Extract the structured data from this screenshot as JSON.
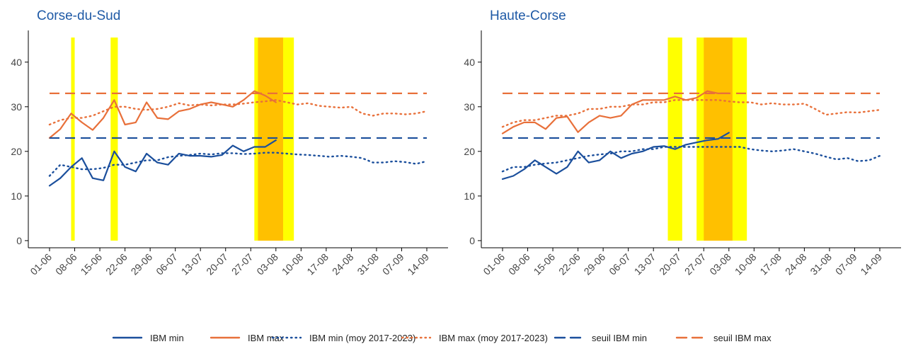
{
  "legend": [
    {
      "name": "IBM min",
      "color": "#1b4f9c",
      "dash": "solid"
    },
    {
      "name": "IBM max",
      "color": "#e8703a",
      "dash": "solid"
    },
    {
      "name": "IBM min (moy 2017-2023)",
      "color": "#1b4f9c",
      "dash": "dotted"
    },
    {
      "name": "IBM max (moy 2017-2023)",
      "color": "#e8703a",
      "dash": "dotted"
    },
    {
      "name": "seuil IBM min",
      "color": "#1b4f9c",
      "dash": "dashed"
    },
    {
      "name": "seuil IBM max",
      "color": "#e8703a",
      "dash": "dashed"
    }
  ],
  "chart_data": [
    {
      "type": "line",
      "title": "Corse-du-Sud",
      "x": [
        "01-06",
        "04-06",
        "07-06",
        "10-06",
        "13-06",
        "16-06",
        "19-06",
        "22-06",
        "25-06",
        "28-06",
        "01-07",
        "04-07",
        "07-07",
        "10-07",
        "13-07",
        "16-07",
        "19-07",
        "22-07",
        "25-07",
        "28-07",
        "31-07",
        "03-08",
        "06-08",
        "09-08",
        "12-08",
        "15-08",
        "18-08",
        "21-08",
        "24-08",
        "27-08",
        "30-08",
        "02-09",
        "05-09",
        "08-09",
        "11-09",
        "14-09"
      ],
      "xticks": [
        "01-06",
        "08-06",
        "15-06",
        "22-06",
        "29-06",
        "06-07",
        "13-07",
        "20-07",
        "27-07",
        "03-08",
        "10-08",
        "17-08",
        "24-08",
        "31-08",
        "07-09",
        "14-09"
      ],
      "ylim": [
        -1.6,
        47.1
      ],
      "yticks": [
        0,
        10,
        20,
        30,
        40
      ],
      "bands": [
        {
          "start": "07-06",
          "end": "08-06",
          "color": "#ffff00"
        },
        {
          "start": "18-06",
          "end": "20-06",
          "color": "#ffff00"
        },
        {
          "start": "28-07",
          "end": "08-08",
          "color": "#ffff00"
        },
        {
          "start": "29-07",
          "end": "05-08",
          "color": "#ffc000"
        }
      ],
      "series": [
        {
          "values": [
            12.3,
            14,
            16.5,
            18.5,
            14,
            13.5,
            20,
            16.5,
            15.5,
            19.5,
            17.5,
            17,
            19.5,
            19,
            19,
            18.8,
            19.2,
            21.3,
            20,
            21,
            21,
            22.5,
            null,
            null,
            null,
            null,
            null,
            null,
            null,
            null,
            null,
            null,
            null,
            null,
            null,
            null
          ]
        },
        {
          "values": [
            23,
            25,
            28.5,
            26.5,
            24.8,
            27.5,
            31.5,
            26,
            26.5,
            31,
            27.5,
            27.2,
            29,
            29.5,
            30.5,
            31,
            30.5,
            30,
            31.5,
            33.5,
            32.5,
            31,
            null,
            null,
            null,
            null,
            null,
            null,
            null,
            null,
            null,
            null,
            null,
            null,
            null,
            null
          ]
        },
        {
          "values": [
            14.5,
            17,
            16.5,
            16,
            16,
            16.3,
            17,
            17,
            17.5,
            18,
            18,
            18.7,
            19,
            19.2,
            19.5,
            19.3,
            19.6,
            19.6,
            19.4,
            19.5,
            19.7,
            19.7,
            19.5,
            19.3,
            19.2,
            19,
            18.8,
            19,
            18.8,
            18.5,
            17.5,
            17.5,
            17.8,
            17.6,
            17.2,
            17.8
          ]
        },
        {
          "values": [
            26,
            27,
            27.5,
            27.5,
            28,
            29,
            30,
            30,
            29.5,
            29.3,
            29.5,
            30,
            30.8,
            30.3,
            30.5,
            30.3,
            30.5,
            30.5,
            30.7,
            31,
            31.2,
            31.5,
            31,
            30.5,
            30.8,
            30.2,
            30,
            29.8,
            30,
            28.5,
            28,
            28.5,
            28.5,
            28.3,
            28.5,
            29
          ]
        },
        {
          "value": 23
        },
        {
          "value": 33
        }
      ]
    },
    {
      "type": "line",
      "title": "Haute-Corse",
      "x": [
        "01-06",
        "04-06",
        "07-06",
        "10-06",
        "13-06",
        "16-06",
        "19-06",
        "22-06",
        "25-06",
        "28-06",
        "01-07",
        "04-07",
        "07-07",
        "10-07",
        "13-07",
        "16-07",
        "19-07",
        "22-07",
        "25-07",
        "28-07",
        "31-07",
        "03-08",
        "06-08",
        "09-08",
        "12-08",
        "15-08",
        "18-08",
        "21-08",
        "24-08",
        "27-08",
        "30-08",
        "02-09",
        "05-09",
        "08-09",
        "11-09",
        "14-09"
      ],
      "xticks": [
        "01-06",
        "08-06",
        "15-06",
        "22-06",
        "29-06",
        "06-07",
        "13-07",
        "20-07",
        "27-07",
        "03-08",
        "10-08",
        "17-08",
        "24-08",
        "31-08",
        "07-09",
        "14-09"
      ],
      "ylim": [
        -1.6,
        47.1
      ],
      "yticks": [
        0,
        10,
        20,
        30,
        40
      ],
      "bands": [
        {
          "start": "17-07",
          "end": "21-07",
          "color": "#ffff00"
        },
        {
          "start": "25-07",
          "end": "08-08",
          "color": "#ffff00"
        },
        {
          "start": "27-07",
          "end": "04-08",
          "color": "#ffc000"
        }
      ],
      "series": [
        {
          "values": [
            13.8,
            14.5,
            16,
            18,
            16.5,
            15,
            16.5,
            20,
            17.5,
            18,
            20,
            18.5,
            19.5,
            20,
            21,
            21.2,
            20.5,
            21.5,
            22,
            22.5,
            22.8,
            24.2,
            null,
            null,
            null,
            null,
            null,
            null,
            null,
            null,
            null,
            null,
            null,
            null,
            null,
            null
          ]
        },
        {
          "values": [
            24,
            25.5,
            26.5,
            26.5,
            25,
            27.5,
            27.8,
            24.3,
            26.5,
            28,
            27.5,
            28,
            30.5,
            31.5,
            31.5,
            31.5,
            32.3,
            31.5,
            32,
            33.5,
            33,
            33,
            null,
            null,
            null,
            null,
            null,
            null,
            null,
            null,
            null,
            null,
            null,
            null,
            null,
            null
          ]
        },
        {
          "values": [
            15.5,
            16.5,
            16.5,
            17,
            17.3,
            17.5,
            18,
            18.5,
            19,
            19.3,
            19.5,
            20,
            20,
            20.5,
            20.5,
            21,
            21,
            21,
            21,
            21,
            21,
            21,
            21,
            20.5,
            20.2,
            20,
            20.2,
            20.5,
            20,
            19.5,
            18.8,
            18.2,
            18.5,
            17.8,
            18,
            19
          ]
        },
        {
          "values": [
            25.5,
            26.5,
            27,
            27,
            27.5,
            28,
            28,
            28.5,
            29.5,
            29.5,
            30,
            30,
            30.5,
            30.5,
            31,
            31,
            31.5,
            31.5,
            31.5,
            31.5,
            31.5,
            31.2,
            31,
            31,
            30.5,
            30.8,
            30.5,
            30.5,
            30.7,
            29.5,
            28.2,
            28.5,
            28.8,
            28.7,
            29,
            29.3
          ]
        },
        {
          "value": 23
        },
        {
          "value": 33
        }
      ]
    }
  ]
}
